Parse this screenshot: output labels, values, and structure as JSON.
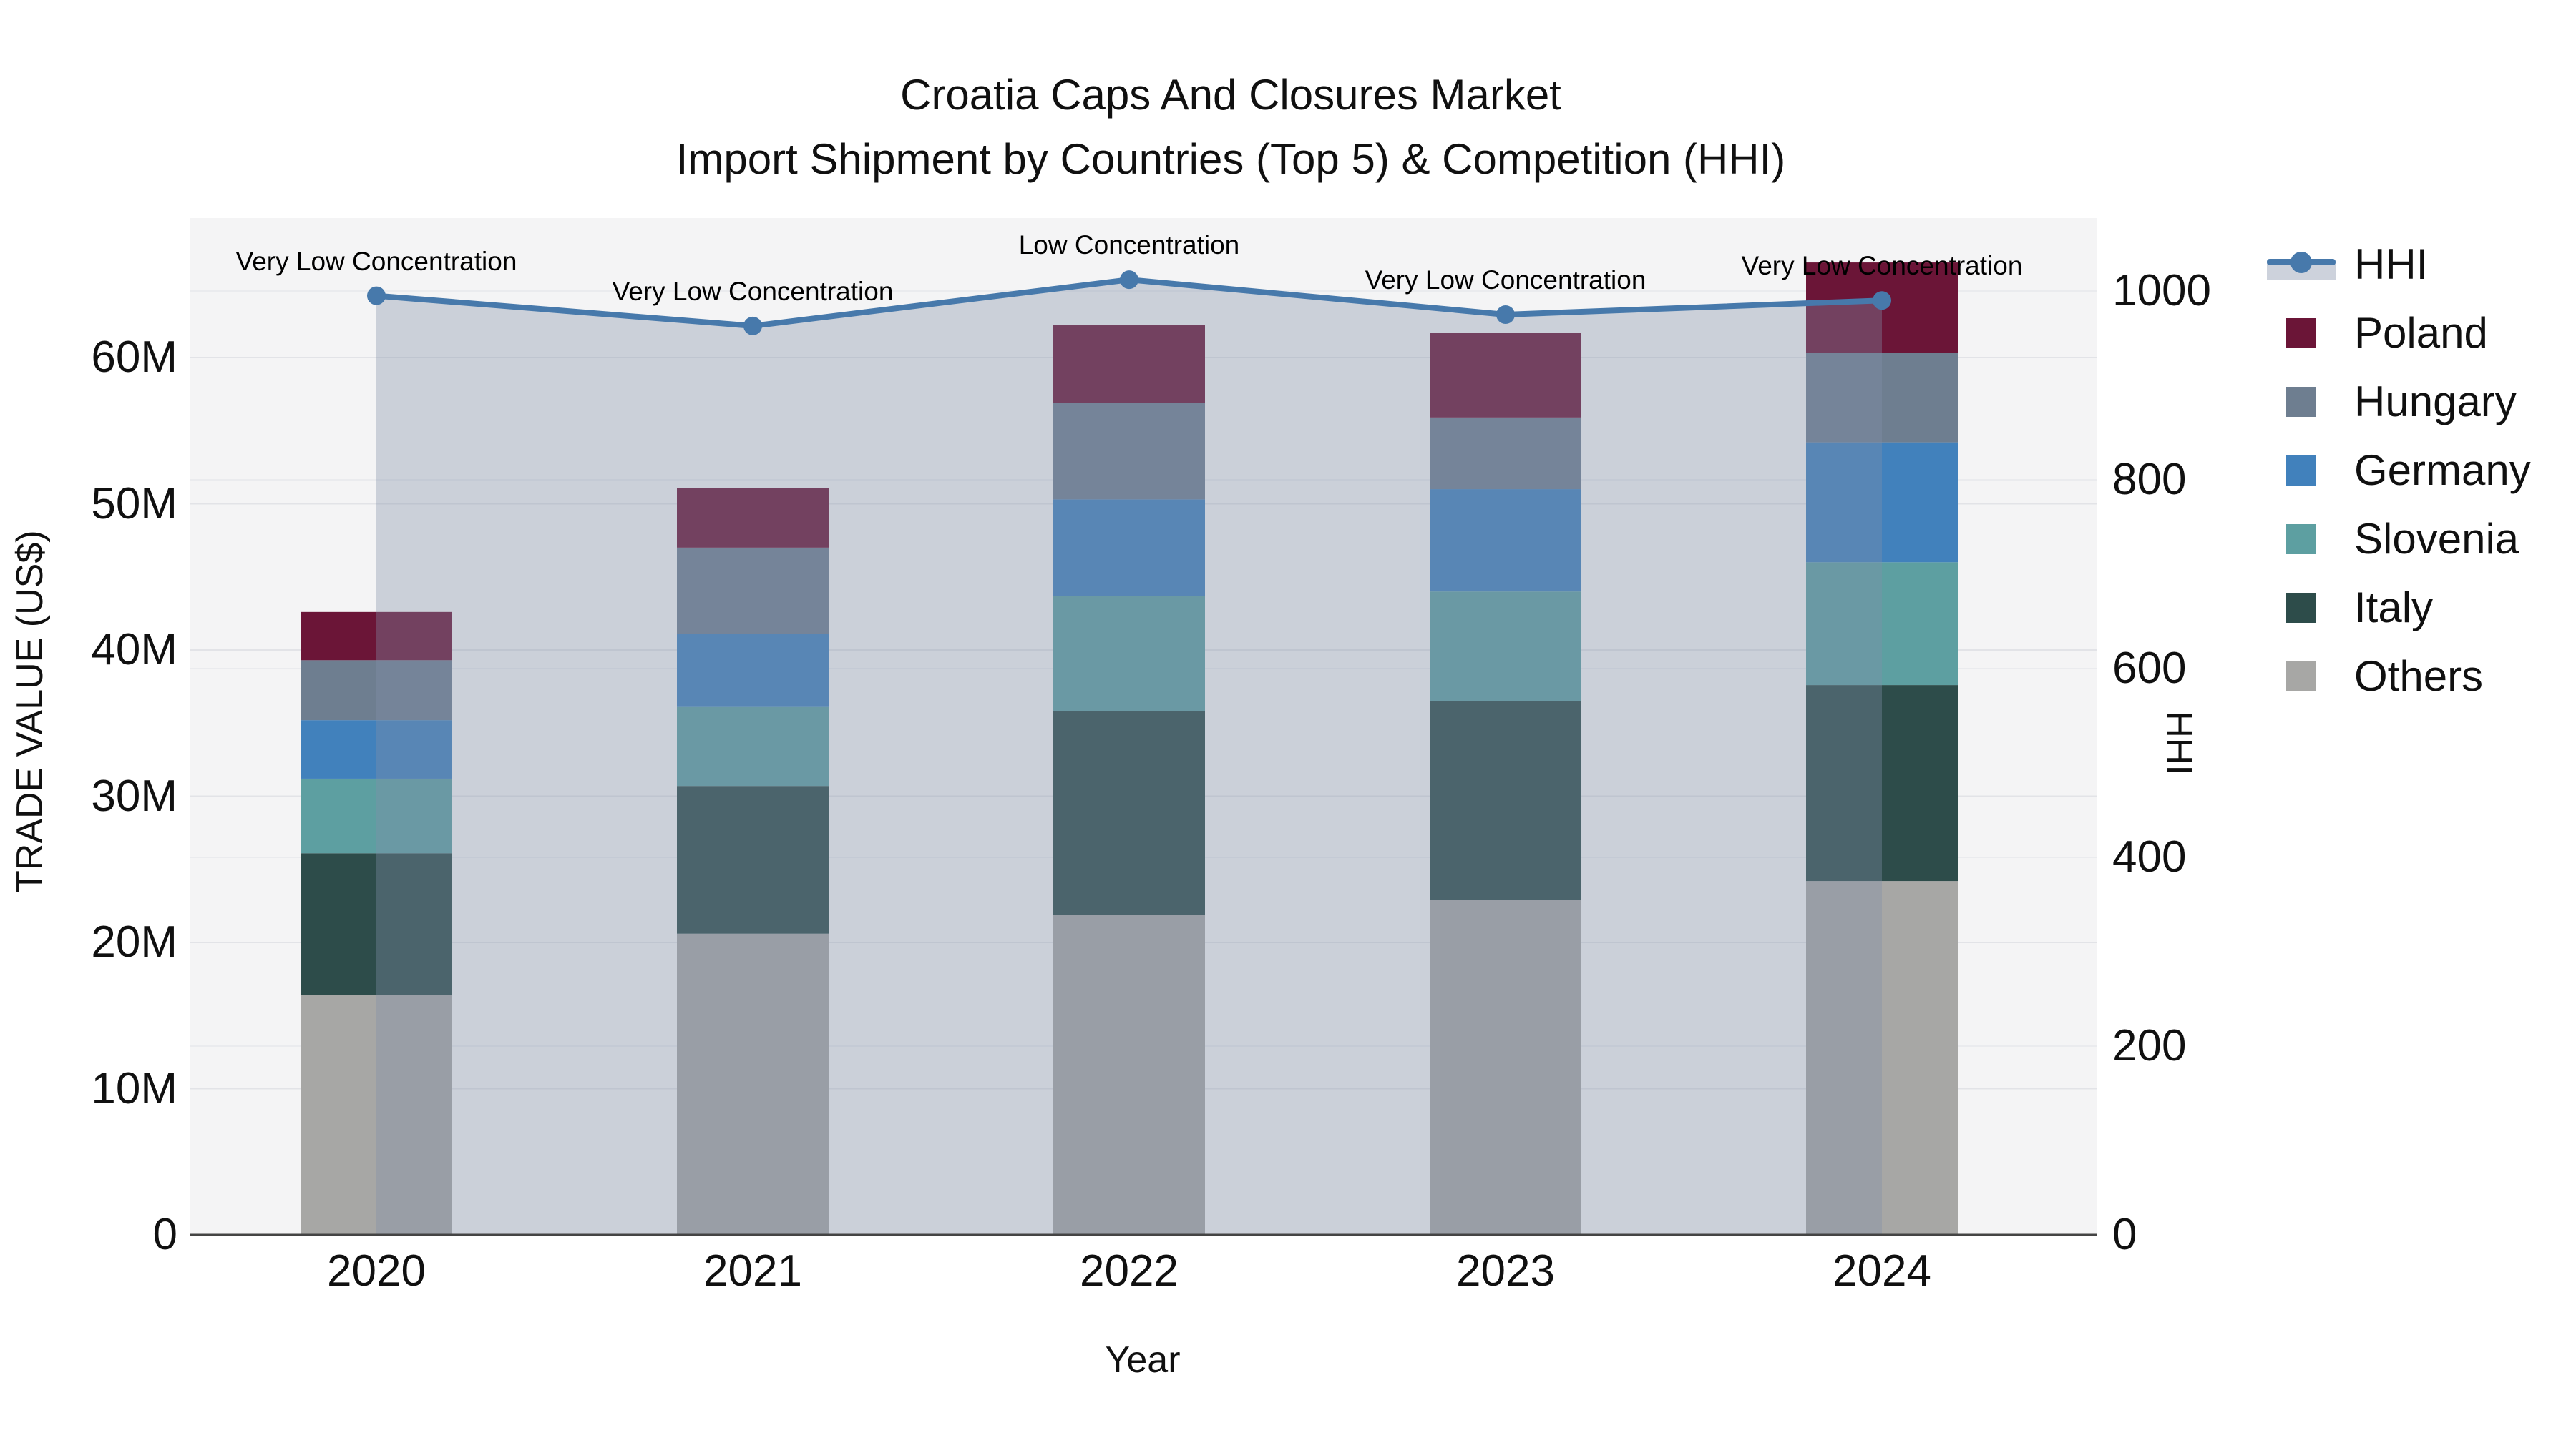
{
  "title": {
    "line1": "Croatia Caps And Closures Market",
    "line2": "Import Shipment by Countries (Top 5) & Competition (HHI)"
  },
  "axes": {
    "x": {
      "title": "Year",
      "tick_labels": [
        "2020",
        "2021",
        "2022",
        "2023",
        "2024"
      ]
    },
    "y_left": {
      "title": "TRADE VALUE (US$)",
      "tick_labels": [
        "0",
        "10M",
        "20M",
        "30M",
        "40M",
        "50M",
        "60M"
      ],
      "tick_values_millions": [
        0,
        10,
        20,
        30,
        40,
        50,
        60
      ]
    },
    "y_right": {
      "title": "HHI",
      "tick_labels": [
        "0",
        "200",
        "400",
        "600",
        "800",
        "1000"
      ],
      "tick_values": [
        0,
        200,
        400,
        600,
        800,
        1000
      ]
    }
  },
  "chart_data": {
    "type": "bar+line",
    "categories": [
      "2020",
      "2021",
      "2022",
      "2023",
      "2024"
    ],
    "bar_unit": "million US$",
    "stack_order_bottom_to_top": [
      "Others",
      "Italy",
      "Slovenia",
      "Germany",
      "Hungary",
      "Poland"
    ],
    "series": [
      {
        "name": "Poland",
        "color": "#6b1537",
        "values": [
          3.3,
          4.1,
          5.3,
          5.8,
          6.2
        ]
      },
      {
        "name": "Hungary",
        "color": "#6e7e90",
        "values": [
          4.1,
          5.9,
          6.6,
          4.9,
          6.1
        ]
      },
      {
        "name": "Germany",
        "color": "#4181bc",
        "values": [
          4.0,
          5.0,
          6.6,
          7.0,
          8.2
        ]
      },
      {
        "name": "Slovenia",
        "color": "#5d9fa1",
        "values": [
          5.1,
          5.4,
          7.9,
          7.5,
          8.4
        ]
      },
      {
        "name": "Italy",
        "color": "#2d4c4a",
        "values": [
          9.7,
          10.1,
          13.9,
          13.6,
          13.4
        ]
      },
      {
        "name": "Others",
        "color": "#a7a7a5",
        "values": [
          16.4,
          20.6,
          21.9,
          22.9,
          24.2
        ]
      }
    ],
    "bar_totals_millions": [
      42.6,
      51.1,
      62.2,
      61.7,
      66.5
    ],
    "line_series": {
      "name": "HHI",
      "color": "#4779ab",
      "fill_color": "rgba(130,143,168,0.36)",
      "values": [
        995,
        963,
        1012,
        975,
        990
      ]
    },
    "annotations": [
      {
        "year": "2020",
        "text": "Very Low Concentration"
      },
      {
        "year": "2021",
        "text": "Very Low Concentration"
      },
      {
        "year": "2022",
        "text": "Low Concentration"
      },
      {
        "year": "2023",
        "text": "Very Low Concentration"
      },
      {
        "year": "2024",
        "text": "Very Low Concentration"
      }
    ],
    "y_left_range_millions": [
      0,
      69.5
    ],
    "y_right_range": [
      0,
      1077
    ],
    "grid": true,
    "legend_position": "right"
  },
  "legend": {
    "items": [
      "HHI",
      "Poland",
      "Hungary",
      "Germany",
      "Slovenia",
      "Italy",
      "Others"
    ]
  },
  "colors": {
    "plot_bg": "#f4f4f5",
    "grid_left": "#e2e3e7",
    "grid_right": "#eaebee",
    "axis_line": "#444444",
    "text": "#101010"
  }
}
